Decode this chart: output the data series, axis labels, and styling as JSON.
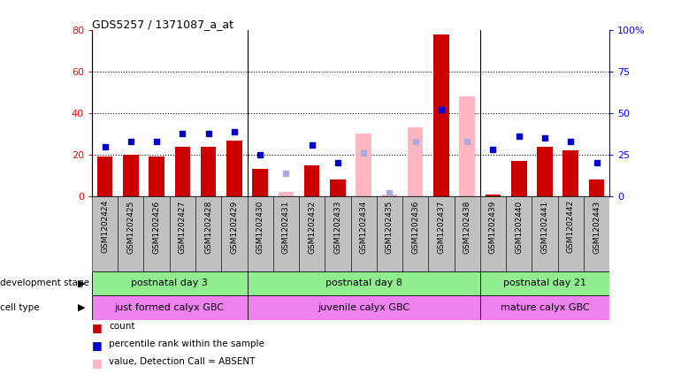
{
  "title": "GDS5257 / 1371087_a_at",
  "samples": [
    "GSM1202424",
    "GSM1202425",
    "GSM1202426",
    "GSM1202427",
    "GSM1202428",
    "GSM1202429",
    "GSM1202430",
    "GSM1202431",
    "GSM1202432",
    "GSM1202433",
    "GSM1202434",
    "GSM1202435",
    "GSM1202436",
    "GSM1202437",
    "GSM1202438",
    "GSM1202439",
    "GSM1202440",
    "GSM1202441",
    "GSM1202442",
    "GSM1202443"
  ],
  "count_values": [
    19,
    20,
    19,
    24,
    24,
    27,
    13,
    0,
    15,
    8,
    0,
    0,
    0,
    78,
    0,
    1,
    17,
    24,
    22,
    8
  ],
  "count_absent": [
    false,
    false,
    false,
    false,
    false,
    false,
    false,
    true,
    false,
    false,
    true,
    true,
    true,
    false,
    true,
    false,
    false,
    false,
    false,
    false
  ],
  "absent_count_values": [
    0,
    0,
    0,
    0,
    0,
    0,
    0,
    2,
    0,
    0,
    30,
    1,
    33,
    0,
    48,
    0,
    0,
    0,
    0,
    0
  ],
  "percentile_values": [
    30,
    33,
    33,
    38,
    38,
    39,
    25,
    0,
    31,
    20,
    0,
    0,
    0,
    52,
    0,
    28,
    36,
    35,
    33,
    20
  ],
  "percentile_absent": [
    false,
    false,
    false,
    false,
    false,
    false,
    false,
    true,
    false,
    false,
    true,
    true,
    true,
    false,
    true,
    false,
    false,
    false,
    false,
    false
  ],
  "absent_percentile_values": [
    0,
    0,
    0,
    0,
    0,
    0,
    0,
    14,
    0,
    0,
    26,
    2,
    33,
    0,
    33,
    0,
    0,
    0,
    0,
    0
  ],
  "group_boundaries": [
    0,
    6,
    15,
    20
  ],
  "group_labels": [
    "postnatal day 3",
    "postnatal day 8",
    "postnatal day 21"
  ],
  "cell_labels": [
    "just formed calyx GBC",
    "juvenile calyx GBC",
    "mature calyx GBC"
  ],
  "ylim_left": [
    0,
    80
  ],
  "ylim_right": [
    0,
    100
  ],
  "yticks_left": [
    0,
    20,
    40,
    60,
    80
  ],
  "yticks_right": [
    0,
    25,
    50,
    75,
    100
  ],
  "bar_color_present": "#CC0000",
  "bar_color_absent": "#FFB6C1",
  "dot_color_present": "#0000CC",
  "dot_color_absent": "#AAAADD",
  "dev_stage_color": "#90EE90",
  "cell_type_color": "#EE82EE",
  "label_cell_bg": "#C0C0C0",
  "background_color": "#ffffff"
}
